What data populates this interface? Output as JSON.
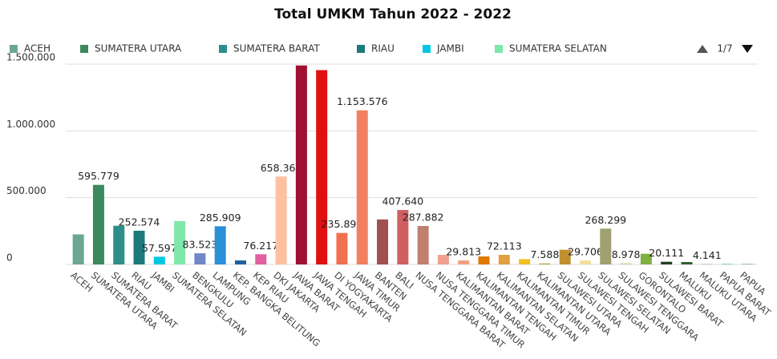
{
  "chart_data": {
    "type": "bar",
    "title": "Total UMKM Tahun 2022 - 2022",
    "categories": [
      "ACEH",
      "SUMATERA UTARA",
      "SUMATERA BARAT",
      "RIAU",
      "JAMBI",
      "SUMATERA SELATAN",
      "BENGKULU",
      "LAMPUNG",
      "KEP. BANGKA BELITUNG",
      "KEP RIAU",
      "DKI JAKARTA",
      "JAWA BARAT",
      "JAWA TENGAH",
      "DI YOGYAKARTA",
      "JAWA TIMUR",
      "BANTEN",
      "BALI",
      "NUSA TENGGARA BARAT",
      "NUSA TENGGARA TIMUR",
      "KALIMANTAN BARAT",
      "KALIMANTAN TENGAH",
      "KALIMANTAN SELATAN",
      "KALIMANTAN TIMUR",
      "KALIMANTAN UTARA",
      "SULAWESI UTARA",
      "SULAWESI TENGAH",
      "SULAWESI SELATAN",
      "SULAWESI TENGGARA",
      "GORONTALO",
      "SULAWESI BARAT",
      "MALUKU",
      "MALUKU UTARA",
      "PAPUA BARAT",
      "PAPUA"
    ],
    "values": [
      225000,
      595779,
      290000,
      252574,
      57597,
      325000,
      83523,
      285909,
      30000,
      76217,
      658365,
      1490000,
      1455000,
      235899,
      1153576,
      337000,
      407640,
      287882,
      72000,
      29813,
      60000,
      72113,
      40000,
      7588,
      110000,
      29706,
      268299,
      8978,
      80000,
      20111,
      18000,
      4141,
      5000,
      4000
    ],
    "value_labels": [
      null,
      "595.779",
      null,
      "252.574",
      "57.597",
      null,
      "83.523",
      "285.909",
      null,
      "76.217",
      "658.365",
      null,
      null,
      "235.899",
      "1.153.576",
      null,
      "407.640",
      "287.882",
      null,
      "29.813",
      null,
      "72.113",
      null,
      "7.588",
      null,
      "29.706",
      "268.299",
      "8.978",
      null,
      "20.111",
      null,
      "4.141",
      null,
      null
    ],
    "colors": [
      "#6aa890",
      "#3a8a5e",
      "#2e8f8a",
      "#1e7a7a",
      "#00c8e0",
      "#7de8a8",
      "#7088c8",
      "#2a90d8",
      "#2060a0",
      "#e060a0",
      "#ffc0a0",
      "#a01030",
      "#e01010",
      "#f07050",
      "#f08060",
      "#a05050",
      "#d06060",
      "#c08070",
      "#f0a090",
      "#f0a080",
      "#e07800",
      "#e0a040",
      "#f0c020",
      "#c0a040",
      "#c09030",
      "#f0e0a0",
      "#a0a070",
      "#d0d0a0",
      "#80b040",
      "#204020",
      "#306030",
      "#a0c0a0",
      "#80c0c0",
      "#60a0b0"
    ],
    "legend_count": 6,
    "legend_page": "1/7",
    "ylim": [
      0,
      1500000
    ],
    "yticks": [
      0,
      {
        "value": 500000,
        "label": "500.000"
      },
      {
        "value": 1000000,
        "label": "1.000.000"
      },
      {
        "value": 1500000,
        "label": "1.500.000"
      }
    ],
    "grid": true
  }
}
